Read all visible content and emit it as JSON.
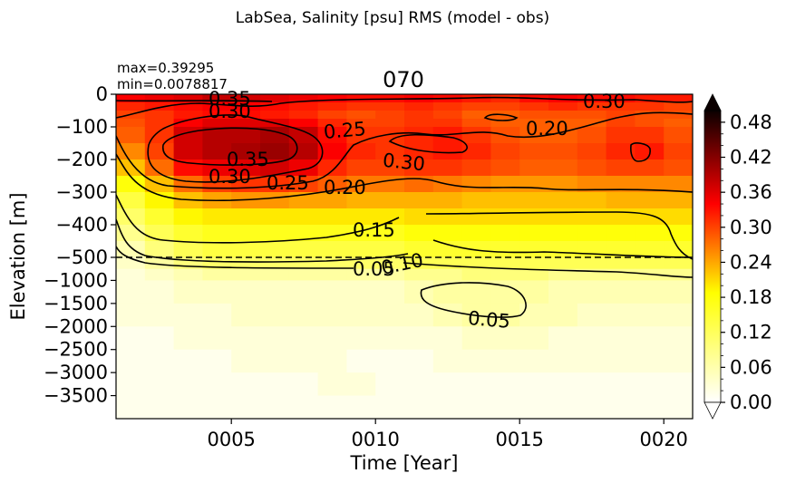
{
  "figure": {
    "suptitle": "LabSea, Salinity [psu] RMS (model - obs)",
    "title": "070",
    "max_label": "max=0.39295",
    "min_label": "min=0.0078817"
  },
  "chart_data": {
    "type": "heatmap",
    "title": "070",
    "xlabel": "Time [Year]",
    "ylabel": "Elevation [m]",
    "xlim": [
      1,
      21
    ],
    "x_ticks": [
      "0005",
      "0010",
      "0015",
      "0020"
    ],
    "x_tick_values": [
      5,
      10,
      15,
      20
    ],
    "y_ticks": [
      "0",
      "−100",
      "−200",
      "−300",
      "−400",
      "−500",
      "−1000",
      "−1500",
      "−2000",
      "−2500",
      "−3000",
      "−3500"
    ],
    "y_tick_depths": [
      0,
      100,
      200,
      300,
      400,
      500,
      1000,
      1500,
      2000,
      2500,
      3000,
      3500
    ],
    "y_scale": "linear 0-500 m (upper part), compressed 500-4000 m (lower part)",
    "dashed_line_depth": 500,
    "colormap": "hot_r",
    "colorbar": {
      "vmin": 0.0,
      "vmax": 0.5,
      "ticks": [
        "0.00",
        "0.06",
        "0.12",
        "0.18",
        "0.24",
        "0.30",
        "0.36",
        "0.42",
        "0.48"
      ],
      "tick_values": [
        0,
        0.06,
        0.12,
        0.18,
        0.24,
        0.3,
        0.36,
        0.42,
        0.48
      ],
      "extend": "both"
    },
    "depth_bins": [
      0,
      25,
      50,
      75,
      100,
      150,
      200,
      250,
      300,
      350,
      400,
      450,
      500,
      750,
      1000,
      1500,
      2000,
      2500,
      3000,
      3500,
      4000
    ],
    "years": [
      1,
      2,
      3,
      4,
      5,
      6,
      7,
      8,
      9,
      10,
      11,
      12,
      13,
      14,
      15,
      16,
      17,
      18,
      19,
      20
    ],
    "values": [
      [
        0.32,
        0.33,
        0.34,
        0.36,
        0.35,
        0.34,
        0.33,
        0.32,
        0.31,
        0.31,
        0.32,
        0.31,
        0.3,
        0.29,
        0.31,
        0.32,
        0.31,
        0.31,
        0.3,
        0.3
      ],
      [
        0.29,
        0.3,
        0.31,
        0.32,
        0.32,
        0.31,
        0.3,
        0.29,
        0.28,
        0.28,
        0.29,
        0.28,
        0.27,
        0.27,
        0.28,
        0.29,
        0.28,
        0.28,
        0.28,
        0.27
      ],
      [
        0.27,
        0.28,
        0.3,
        0.31,
        0.31,
        0.3,
        0.29,
        0.27,
        0.26,
        0.27,
        0.28,
        0.27,
        0.25,
        0.25,
        0.26,
        0.26,
        0.26,
        0.27,
        0.26,
        0.26
      ],
      [
        0.26,
        0.28,
        0.32,
        0.34,
        0.34,
        0.34,
        0.32,
        0.29,
        0.27,
        0.27,
        0.28,
        0.28,
        0.26,
        0.25,
        0.25,
        0.25,
        0.25,
        0.27,
        0.26,
        0.25
      ],
      [
        0.25,
        0.28,
        0.35,
        0.37,
        0.37,
        0.38,
        0.36,
        0.31,
        0.28,
        0.28,
        0.29,
        0.3,
        0.28,
        0.26,
        0.25,
        0.25,
        0.26,
        0.28,
        0.28,
        0.26
      ],
      [
        0.22,
        0.27,
        0.35,
        0.37,
        0.38,
        0.39,
        0.37,
        0.32,
        0.29,
        0.28,
        0.29,
        0.3,
        0.29,
        0.27,
        0.26,
        0.26,
        0.27,
        0.29,
        0.3,
        0.27
      ],
      [
        0.18,
        0.24,
        0.31,
        0.33,
        0.34,
        0.35,
        0.33,
        0.29,
        0.27,
        0.27,
        0.28,
        0.28,
        0.27,
        0.26,
        0.25,
        0.25,
        0.26,
        0.27,
        0.27,
        0.26
      ],
      [
        0.13,
        0.18,
        0.24,
        0.27,
        0.28,
        0.28,
        0.27,
        0.25,
        0.23,
        0.23,
        0.24,
        0.23,
        0.22,
        0.21,
        0.21,
        0.21,
        0.22,
        0.22,
        0.22,
        0.22
      ],
      [
        0.1,
        0.14,
        0.18,
        0.2,
        0.21,
        0.21,
        0.2,
        0.2,
        0.19,
        0.19,
        0.19,
        0.19,
        0.18,
        0.18,
        0.18,
        0.18,
        0.18,
        0.19,
        0.19,
        0.19
      ],
      [
        0.08,
        0.11,
        0.14,
        0.15,
        0.15,
        0.15,
        0.15,
        0.15,
        0.15,
        0.15,
        0.16,
        0.16,
        0.16,
        0.16,
        0.16,
        0.16,
        0.16,
        0.16,
        0.16,
        0.16
      ],
      [
        0.06,
        0.09,
        0.11,
        0.12,
        0.12,
        0.12,
        0.12,
        0.12,
        0.12,
        0.12,
        0.13,
        0.13,
        0.13,
        0.13,
        0.13,
        0.13,
        0.13,
        0.13,
        0.13,
        0.13
      ],
      [
        0.04,
        0.07,
        0.09,
        0.1,
        0.1,
        0.1,
        0.1,
        0.1,
        0.1,
        0.1,
        0.11,
        0.11,
        0.11,
        0.11,
        0.11,
        0.11,
        0.11,
        0.11,
        0.11,
        0.11
      ],
      [
        0.03,
        0.05,
        0.07,
        0.08,
        0.08,
        0.08,
        0.08,
        0.08,
        0.08,
        0.08,
        0.09,
        0.09,
        0.09,
        0.09,
        0.09,
        0.09,
        0.09,
        0.09,
        0.09,
        0.09
      ],
      [
        0.02,
        0.03,
        0.04,
        0.05,
        0.05,
        0.05,
        0.05,
        0.05,
        0.05,
        0.05,
        0.06,
        0.06,
        0.07,
        0.07,
        0.07,
        0.06,
        0.06,
        0.06,
        0.06,
        0.06
      ],
      [
        0.02,
        0.02,
        0.03,
        0.03,
        0.03,
        0.03,
        0.03,
        0.03,
        0.03,
        0.03,
        0.04,
        0.05,
        0.05,
        0.05,
        0.05,
        0.04,
        0.04,
        0.04,
        0.04,
        0.04
      ],
      [
        0.02,
        0.02,
        0.02,
        0.02,
        0.03,
        0.03,
        0.03,
        0.03,
        0.03,
        0.03,
        0.03,
        0.04,
        0.05,
        0.05,
        0.04,
        0.04,
        0.03,
        0.03,
        0.03,
        0.03
      ],
      [
        0.01,
        0.01,
        0.02,
        0.02,
        0.02,
        0.02,
        0.02,
        0.02,
        0.02,
        0.02,
        0.02,
        0.02,
        0.03,
        0.03,
        0.03,
        0.02,
        0.02,
        0.02,
        0.02,
        0.02
      ],
      [
        0.01,
        0.01,
        0.01,
        0.01,
        0.02,
        0.02,
        0.02,
        0.02,
        0.01,
        0.01,
        0.01,
        0.02,
        0.02,
        0.02,
        0.02,
        0.02,
        0.02,
        0.02,
        0.02,
        0.02
      ],
      [
        0.01,
        0.01,
        0.01,
        0.01,
        0.01,
        0.01,
        0.01,
        0.02,
        0.02,
        0.01,
        0.01,
        0.01,
        0.01,
        0.01,
        0.01,
        0.01,
        0.01,
        0.01,
        0.01,
        0.01
      ],
      [
        0.01,
        0.01,
        0.01,
        0.01,
        0.01,
        0.01,
        0.01,
        0.01,
        0.01,
        0.01,
        0.01,
        0.01,
        0.01,
        0.01,
        0.01,
        0.01,
        0.01,
        0.01,
        0.01,
        0.01
      ]
    ],
    "contour_levels": [
      0.05,
      0.1,
      0.15,
      0.2,
      0.25,
      0.3,
      0.35
    ],
    "contour_labels": [
      {
        "text": "0.35",
        "year": 4.8,
        "depth": 15
      },
      {
        "text": "0.30",
        "year": 4.9,
        "depth": 40
      },
      {
        "text": "0.30",
        "year": 17.8,
        "depth": 15
      },
      {
        "text": "0.25",
        "year": 9.0,
        "depth": 95
      },
      {
        "text": "0.20",
        "year": 16.0,
        "depth": 85
      },
      {
        "text": "0.35",
        "year": 5.6,
        "depth": 170
      },
      {
        "text": "0.30",
        "year": 11.0,
        "depth": 175
      },
      {
        "text": "0.30",
        "year": 4.0,
        "depth": 220
      },
      {
        "text": "0.25",
        "year": 7.0,
        "depth": 235
      },
      {
        "text": "0.20",
        "year": 9.0,
        "depth": 250
      },
      {
        "text": "0.15",
        "year": 10.0,
        "depth": 385
      },
      {
        "text": "0.10",
        "year": 10.5,
        "depth": 510
      },
      {
        "text": "0.05",
        "year": 10.0,
        "depth": 560
      },
      {
        "text": "0.05",
        "year": 14.0,
        "depth": 1940
      }
    ]
  }
}
